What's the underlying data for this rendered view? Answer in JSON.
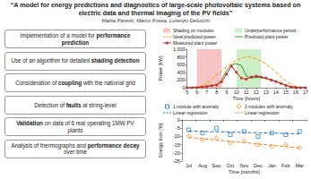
{
  "header": {
    "title": "“A model for energy predictions and diagnostics of large-scale photovoltaic systems based on electric data and thermal imaging of the PV fields”",
    "authors": "Mattia Parenti, Marco Fossa, Lorenzo Delucchi"
  },
  "highlights": [
    {
      "parts": [
        {
          "text": "Implementation of a model for "
        },
        {
          "text": "performance prediction",
          "bold": true
        }
      ]
    },
    {
      "parts": [
        {
          "text": "Use of an algorithm for detailed "
        },
        {
          "text": "shading detection",
          "bold": true
        }
      ]
    },
    {
      "parts": [
        {
          "text": "Consideration of "
        },
        {
          "text": "coupling",
          "bold": true
        },
        {
          "text": " with the national grid"
        }
      ]
    },
    {
      "parts": [
        {
          "text": "Detection of "
        },
        {
          "text": "faults",
          "bold": true
        },
        {
          "text": " at string-level"
        }
      ]
    },
    {
      "parts": [
        {
          "text": "Validation",
          "bold": true
        },
        {
          "text": " on data of 6 real operating 1MW PV plants"
        }
      ]
    },
    {
      "parts": [
        {
          "text": "Analysis of thermographs and "
        },
        {
          "text": "performance decay",
          "bold": true
        },
        {
          "text": " over time"
        }
      ]
    }
  ],
  "chart_data": [
    {
      "type": "line",
      "x_label": "Time [hours]",
      "y_label": "Power [kW]",
      "x": [
        5,
        5.5,
        6,
        6.5,
        7,
        7.5,
        8,
        8.5,
        9,
        9.5,
        10,
        10.5,
        11,
        11.5,
        12,
        12.5,
        13,
        13.5,
        14,
        14.5,
        15,
        15.5,
        16,
        16.5,
        17
      ],
      "xlim": [
        5,
        17
      ],
      "xticks": [
        5,
        6,
        7,
        8,
        9,
        10,
        11,
        12,
        13,
        14,
        15,
        16,
        17
      ],
      "ylim": [
        0,
        1000
      ],
      "yticks": [
        0,
        200,
        400,
        600,
        800,
        1000
      ],
      "grid": false,
      "shaded_periods": [
        {
          "name": "Shading on modules",
          "color": "#f6c4c4",
          "ranges": [
            [
              6,
              8.5
            ]
          ]
        },
        {
          "name": "Underperformance period",
          "color": "#cdeec6",
          "ranges": [
            [
              10,
              12.5
            ]
          ]
        }
      ],
      "series": [
        {
          "name": "Ideal predicted power",
          "color": "#ff9900",
          "line_style": "dashed",
          "values": [
            0,
            0,
            10,
            50,
            120,
            220,
            330,
            440,
            550,
            640,
            710,
            770,
            800,
            790,
            750,
            690,
            610,
            510,
            400,
            290,
            180,
            90,
            30,
            5,
            0
          ]
        },
        {
          "name": "Predicted plant power",
          "color": "#2ca02c",
          "line_style": "solid",
          "values": [
            0,
            0,
            5,
            20,
            40,
            60,
            80,
            200,
            450,
            600,
            620,
            580,
            300,
            250,
            270,
            260,
            240,
            210,
            170,
            120,
            70,
            30,
            10,
            0,
            0
          ]
        },
        {
          "name": "Measured plant power",
          "color": "#d62728",
          "line_style": "solid",
          "marker": "circle",
          "values": [
            0,
            0,
            5,
            15,
            30,
            50,
            70,
            150,
            350,
            560,
            400,
            250,
            220,
            280,
            300,
            280,
            250,
            200,
            160,
            110,
            60,
            25,
            8,
            0,
            0
          ]
        }
      ]
    },
    {
      "type": "scatter",
      "x_label": "Time [months]",
      "y_label": "Energy loss [%]",
      "categories": [
        "Jul",
        "Aug",
        "Sep",
        "Oct",
        "Nov",
        "Dec",
        "Jan",
        "Feb",
        "Mar"
      ],
      "ylim": [
        -25,
        0
      ],
      "yticks": [
        -25,
        -20,
        -15,
        -10,
        -5,
        0
      ],
      "grid": false,
      "series": [
        {
          "name": "1 module with anomaly",
          "color": "#1f77b4",
          "marker": "square",
          "values": [
            -6,
            -8,
            -5,
            -9,
            -7,
            -10,
            -8,
            -9,
            -7
          ]
        },
        {
          "name": "2 modules with anomaly",
          "color": "#ff7f0e",
          "marker": "circle",
          "values": [
            -10,
            -12,
            -11,
            -14,
            -13,
            -15,
            -16,
            -15,
            -17
          ]
        },
        {
          "name": "Linear regression",
          "type": "line",
          "color": "#1f77b4",
          "line_style": "dashed",
          "values": [
            -6.8,
            -7,
            -7.2,
            -7.4,
            -7.6,
            -7.8,
            -8,
            -8.2,
            -8.4
          ]
        },
        {
          "name": "Linear regression",
          "type": "line",
          "color": "#ff7f0e",
          "line_style": "dashed",
          "values": [
            -10.6,
            -11.4,
            -12.2,
            -13,
            -13.8,
            -14.6,
            -15.4,
            -16.2,
            -17
          ]
        }
      ]
    }
  ]
}
